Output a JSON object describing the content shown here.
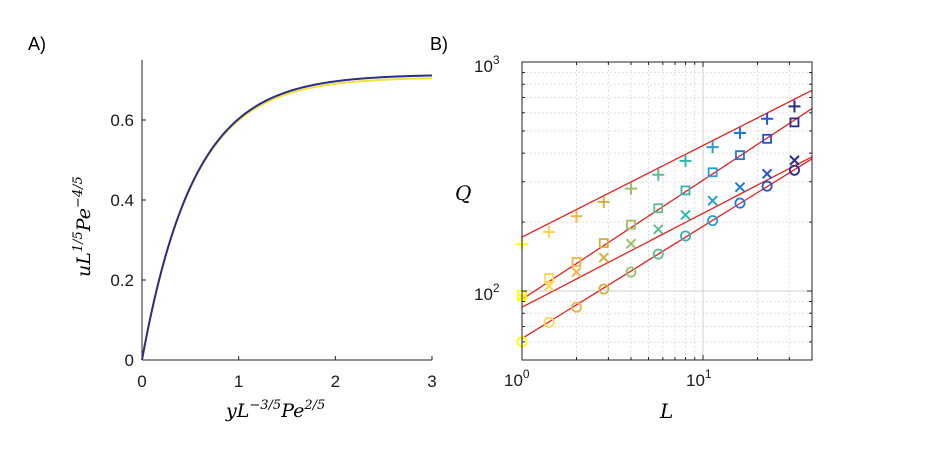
{
  "chart_data": [
    {
      "panel": "A)",
      "type": "line",
      "xlabel": {
        "base": "yL",
        "sup1": "−3/5",
        "mid": "Pe",
        "sup2": "2/5"
      },
      "ylabel": {
        "base": "uL",
        "sup1": "1/5",
        "mid": "Pe",
        "sup2": "−4/5"
      },
      "xlim": [
        0,
        3
      ],
      "ylim": [
        0,
        0.75
      ],
      "xticks": [
        0,
        1,
        2,
        3
      ],
      "yticks": [
        0,
        0.2,
        0.4,
        0.6
      ],
      "xtick_labels": [
        "0",
        "1",
        "2",
        "3"
      ],
      "ytick_labels": [
        "0",
        "0.2",
        "0.4",
        "0.6"
      ],
      "series": [
        {
          "name": "profile-yellow",
          "color": "#f2e13a",
          "asymptote": 0.707,
          "rate": 1.88,
          "x": [
            0,
            0.25,
            0.5,
            0.75,
            1.0,
            1.25,
            1.5,
            1.75,
            2.0,
            2.5,
            3.0
          ],
          "y": [
            0,
            0.3,
            0.5,
            0.61,
            0.66,
            0.69,
            0.7,
            0.705,
            0.706,
            0.707,
            0.707
          ]
        },
        {
          "name": "profile-blue",
          "color": "#2a2e86",
          "asymptote": 0.714,
          "rate": 1.86,
          "x": [
            0,
            0.25,
            0.5,
            0.75,
            1.0,
            1.25,
            1.5,
            1.75,
            2.0,
            2.5,
            3.0
          ],
          "y": [
            0,
            0.3,
            0.5,
            0.61,
            0.67,
            0.695,
            0.705,
            0.711,
            0.713,
            0.714,
            0.714
          ]
        }
      ]
    },
    {
      "panel": "B)",
      "type": "scatter",
      "xscale": "log",
      "yscale": "log",
      "xlabel": "L",
      "ylabel": "Q",
      "xlim": [
        1,
        40
      ],
      "ylim": [
        50,
        1000
      ],
      "xtick_labels": [
        {
          "base": "10",
          "exp": "0"
        },
        {
          "base": "10",
          "exp": "1"
        }
      ],
      "ytick_labels": [
        {
          "base": "10",
          "exp": "2"
        },
        {
          "base": "10",
          "exp": "3"
        }
      ],
      "x": [
        1,
        1.41,
        2,
        2.83,
        4,
        5.66,
        8,
        11.3,
        16,
        22.6,
        32
      ],
      "colors": [
        "#ffff00",
        "#ffd84a",
        "#f1b44a",
        "#cfb23f",
        "#9ebe6a",
        "#5cbd8f",
        "#2fb8b0",
        "#25a0cf",
        "#2177d8",
        "#2552c4",
        "#292c8a"
      ],
      "series": [
        {
          "name": "plus",
          "marker": "+",
          "values": [
            160,
            181,
            212,
            245,
            280,
            322,
            370,
            425,
            490,
            565,
            640
          ]
        },
        {
          "name": "square",
          "marker": "s",
          "values": [
            96,
            114,
            134,
            162,
            195,
            230,
            275,
            330,
            392,
            462,
            545
          ]
        },
        {
          "name": "cross",
          "marker": "x",
          "values": [
            94,
            105,
            121,
            140,
            161,
            186,
            215,
            248,
            284,
            325,
            372
          ]
        },
        {
          "name": "circle",
          "marker": "o",
          "values": [
            60,
            73,
            85,
            102,
            121,
            145,
            174,
            203,
            242,
            287,
            337
          ]
        }
      ],
      "fit_lines": [
        {
          "name": "fit-plus",
          "color": "#e41f1f",
          "a": 172,
          "b": 0.4
        },
        {
          "name": "fit-square",
          "color": "#e41f1f",
          "a": 92,
          "b": 0.52
        },
        {
          "name": "fit-cross",
          "color": "#e41f1f",
          "a": 85,
          "b": 0.41
        },
        {
          "name": "fit-circle",
          "color": "#e41f1f",
          "a": 62,
          "b": 0.49
        }
      ]
    }
  ]
}
